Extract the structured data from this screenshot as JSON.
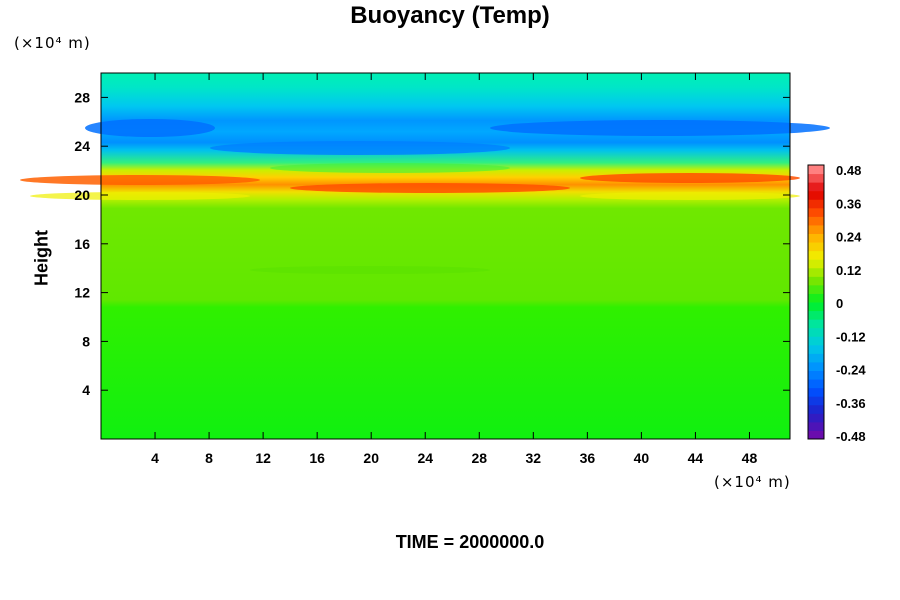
{
  "title": "Buoyancy (Temp)",
  "time_label": "TIME = 2000000.0",
  "y_unit": "(×10⁴ m)",
  "x_unit": "(×10⁴ m)",
  "chart_data": {
    "type": "heatmap",
    "title": "Buoyancy (Temp)",
    "xlabel": "",
    "ylabel": "Height",
    "xlim": [
      0,
      51
    ],
    "ylim": [
      0,
      30
    ],
    "x_ticks": [
      4,
      8,
      12,
      16,
      20,
      24,
      28,
      32,
      36,
      40,
      44,
      48
    ],
    "y_ticks": [
      4,
      8,
      12,
      16,
      20,
      24,
      28
    ],
    "colorbar": {
      "range": [
        -0.48,
        0.48
      ],
      "ticks": [
        "0.48",
        "0.36",
        "0.24",
        "0.12",
        "0",
        "-0.12",
        "-0.24",
        "-0.36",
        "-0.48"
      ],
      "colors": [
        "#6a0dad",
        "#2020c8",
        "#0050ff",
        "#0090ff",
        "#00c8e6",
        "#00e6a0",
        "#00f020",
        "#7ae600",
        "#f0f000",
        "#ffb000",
        "#ff5000",
        "#e00000",
        "#ff8080"
      ]
    },
    "field_description_values": {
      "lower_region_0_to_11": 0.0,
      "mid_region_11_to_18": 0.06,
      "band_20_to_21_max": 0.4,
      "band_22_to_26_min": -0.2
    }
  }
}
